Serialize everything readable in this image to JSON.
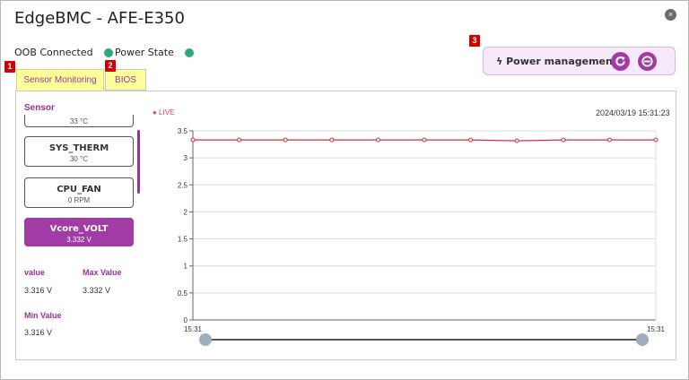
{
  "window": {
    "title": "EdgeBMC - AFE-E350",
    "close_icon": "×"
  },
  "status": {
    "oob_label": "OOB Connected",
    "power_label": "Power State",
    "indicator_color": "#2fa882"
  },
  "badges": [
    "1",
    "2",
    "3"
  ],
  "power": {
    "label": "Power management",
    "icon": "bolt-icon",
    "buttons": [
      "restart-icon",
      "power-off-icon"
    ]
  },
  "tabs": [
    {
      "label": "Sensor Monitoring",
      "active": true
    },
    {
      "label": "BIOS",
      "active": false
    }
  ],
  "sensor_panel": {
    "heading": "Sensor",
    "items": [
      {
        "name": "",
        "value": "33 °C"
      },
      {
        "name": "SYS_THERM",
        "value": "30 °C"
      },
      {
        "name": "CPU_FAN",
        "value": "0 RPM"
      },
      {
        "name": "Vcore_VOLT",
        "value": "3.332 V",
        "selected": true
      }
    ]
  },
  "stats": {
    "value_label": "value",
    "value": "3.316 V",
    "max_label": "Max Value",
    "max": "3.332 V",
    "min_label": "Min Value",
    "min": "3.316 V"
  },
  "chart_header": {
    "live": "● LIVE",
    "timestamp": "2024/03/19 15:31:23"
  },
  "chart_data": {
    "type": "line",
    "y_ticks": [
      "0",
      "0.5",
      "1",
      "1.5",
      "2",
      "2.5",
      "3",
      "3.5"
    ],
    "ylim": [
      0,
      3.5
    ],
    "x_tick_labels": [
      "15:31",
      "15:31"
    ],
    "values": [
      3.332,
      3.332,
      3.332,
      3.332,
      3.332,
      3.332,
      3.332,
      3.316,
      3.332,
      3.332,
      3.332
    ],
    "line_color": "#d62d3c",
    "grid": true
  },
  "colors": {
    "accent": "#a33ba6",
    "tab_highlight": "#ffff9a",
    "badge": "#d30000"
  }
}
